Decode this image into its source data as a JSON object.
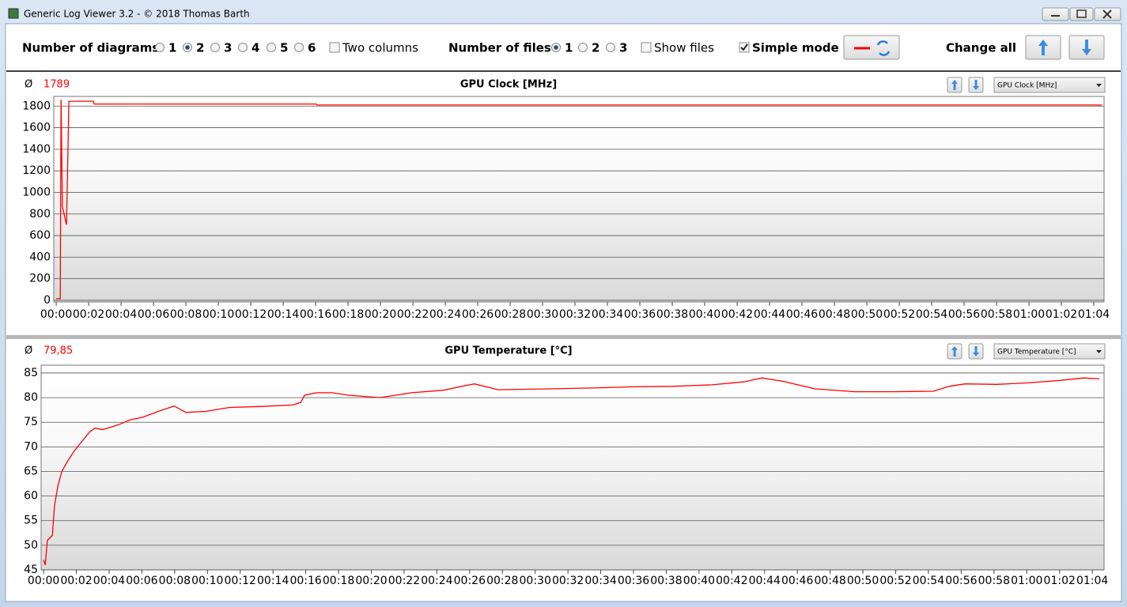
{
  "window": {
    "title": "Generic Log Viewer 3.2 - © 2018 Thomas Barth"
  },
  "toolbar": {
    "diagrams": {
      "label": "Number of diagrams",
      "options": [
        {
          "label": "1",
          "selected": false
        },
        {
          "label": "2",
          "selected": true
        },
        {
          "label": "3",
          "selected": false
        },
        {
          "label": "4",
          "selected": false
        },
        {
          "label": "5",
          "selected": false
        },
        {
          "label": "6",
          "selected": false
        }
      ]
    },
    "two_columns": {
      "label": "Two columns",
      "checked": false
    },
    "files": {
      "label": "Number of files",
      "options": [
        {
          "label": "1",
          "selected": true
        },
        {
          "label": "2",
          "selected": false
        },
        {
          "label": "3",
          "selected": false
        }
      ]
    },
    "show_files": {
      "label": "Show files",
      "checked": false
    },
    "simple_mode": {
      "label": "Simple mode",
      "checked": true
    },
    "change_all": "Change all"
  },
  "chart_data": [
    {
      "type": "line",
      "title": "GPU Clock [MHz]",
      "average_symbol": "Ø",
      "average": "1789",
      "selector": "GPU Clock [MHz]",
      "color": "#ff0000",
      "grid": true,
      "x": [
        0,
        15,
        18,
        23,
        38,
        47,
        138,
        140,
        963,
        966,
        3870
      ],
      "values": [
        15,
        15,
        1860,
        870,
        700,
        1845,
        1845,
        1820,
        1820,
        1810,
        1810
      ],
      "xlim": [
        -9,
        3878
      ],
      "ylim": [
        -15,
        1890
      ],
      "yticks": [
        0,
        200,
        400,
        600,
        800,
        1000,
        1200,
        1400,
        1600,
        1800
      ],
      "xticks": [
        {
          "value": 0,
          "label": "00:00"
        },
        {
          "value": 120,
          "label": "00:02"
        },
        {
          "value": 240,
          "label": "00:04"
        },
        {
          "value": 360,
          "label": "00:06"
        },
        {
          "value": 480,
          "label": "00:08"
        },
        {
          "value": 600,
          "label": "00:10"
        },
        {
          "value": 720,
          "label": "00:12"
        },
        {
          "value": 840,
          "label": "00:14"
        },
        {
          "value": 960,
          "label": "00:16"
        },
        {
          "value": 1080,
          "label": "00:18"
        },
        {
          "value": 1200,
          "label": "00:20"
        },
        {
          "value": 1320,
          "label": "00:22"
        },
        {
          "value": 1440,
          "label": "00:24"
        },
        {
          "value": 1560,
          "label": "00:26"
        },
        {
          "value": 1680,
          "label": "00:28"
        },
        {
          "value": 1800,
          "label": "00:30"
        },
        {
          "value": 1920,
          "label": "00:32"
        },
        {
          "value": 2040,
          "label": "00:34"
        },
        {
          "value": 2160,
          "label": "00:36"
        },
        {
          "value": 2280,
          "label": "00:38"
        },
        {
          "value": 2400,
          "label": "00:40"
        },
        {
          "value": 2520,
          "label": "00:42"
        },
        {
          "value": 2640,
          "label": "00:44"
        },
        {
          "value": 2760,
          "label": "00:46"
        },
        {
          "value": 2880,
          "label": "00:48"
        },
        {
          "value": 3000,
          "label": "00:50"
        },
        {
          "value": 3120,
          "label": "00:52"
        },
        {
          "value": 3240,
          "label": "00:54"
        },
        {
          "value": 3360,
          "label": "00:56"
        },
        {
          "value": 3480,
          "label": "00:58"
        },
        {
          "value": 3600,
          "label": "01:00"
        },
        {
          "value": 3720,
          "label": "01:02"
        },
        {
          "value": 3840,
          "label": "01:04"
        }
      ]
    },
    {
      "type": "line",
      "title": "GPU Temperature [°C]",
      "average_symbol": "Ø",
      "average": "79,85",
      "selector": "GPU Temperature [°C]",
      "color": "#ff0000",
      "grid": true,
      "x": [
        0,
        6,
        14,
        32,
        40,
        52,
        67,
        87,
        110,
        139,
        168,
        188,
        217,
        275,
        318,
        362,
        420,
        463,
        478,
        521,
        594,
        681,
        796,
        912,
        941,
        956,
        999,
        1057,
        1115,
        1231,
        1347,
        1463,
        1549,
        1578,
        1665,
        1868,
        2041,
        2157,
        2302,
        2447,
        2563,
        2630,
        2708,
        2824,
        2968,
        3113,
        3258,
        3316,
        3374,
        3490,
        3606,
        3721,
        3808,
        3866
      ],
      "values": [
        47,
        46,
        51,
        52,
        58,
        62,
        65,
        67,
        69,
        71,
        73,
        73.8,
        73.5,
        74.5,
        75.5,
        76,
        77.2,
        78,
        78.3,
        77,
        77.2,
        78,
        78.2,
        78.5,
        79,
        80.5,
        81,
        81,
        80.5,
        80,
        81,
        81.5,
        82.5,
        82.8,
        81.6,
        81.8,
        82,
        82.2,
        82.3,
        82.6,
        83.2,
        84,
        83.3,
        81.8,
        81.2,
        81.2,
        81.3,
        82.3,
        82.8,
        82.7,
        83,
        83.5,
        84,
        83.8
      ],
      "xlim": [
        -9,
        3883
      ],
      "ylim": [
        45,
        86.6
      ],
      "yticks": [
        45,
        50,
        55,
        60,
        65,
        70,
        75,
        80,
        85
      ],
      "xticks": [
        {
          "value": 0,
          "label": "00:00"
        },
        {
          "value": 120,
          "label": "00:02"
        },
        {
          "value": 240,
          "label": "00:04"
        },
        {
          "value": 360,
          "label": "00:06"
        },
        {
          "value": 480,
          "label": "00:08"
        },
        {
          "value": 600,
          "label": "00:10"
        },
        {
          "value": 720,
          "label": "00:12"
        },
        {
          "value": 840,
          "label": "00:14"
        },
        {
          "value": 960,
          "label": "00:16"
        },
        {
          "value": 1080,
          "label": "00:18"
        },
        {
          "value": 1200,
          "label": "00:20"
        },
        {
          "value": 1320,
          "label": "00:22"
        },
        {
          "value": 1440,
          "label": "00:24"
        },
        {
          "value": 1560,
          "label": "00:26"
        },
        {
          "value": 1680,
          "label": "00:28"
        },
        {
          "value": 1800,
          "label": "00:30"
        },
        {
          "value": 1920,
          "label": "00:32"
        },
        {
          "value": 2040,
          "label": "00:34"
        },
        {
          "value": 2160,
          "label": "00:36"
        },
        {
          "value": 2280,
          "label": "00:38"
        },
        {
          "value": 2400,
          "label": "00:40"
        },
        {
          "value": 2520,
          "label": "00:42"
        },
        {
          "value": 2640,
          "label": "00:44"
        },
        {
          "value": 2760,
          "label": "00:46"
        },
        {
          "value": 2880,
          "label": "00:48"
        },
        {
          "value": 3000,
          "label": "00:50"
        },
        {
          "value": 3120,
          "label": "00:52"
        },
        {
          "value": 3240,
          "label": "00:54"
        },
        {
          "value": 3360,
          "label": "00:56"
        },
        {
          "value": 3480,
          "label": "00:58"
        },
        {
          "value": 3600,
          "label": "01:00"
        },
        {
          "value": 3720,
          "label": "01:02"
        },
        {
          "value": 3840,
          "label": "01:04"
        }
      ]
    }
  ]
}
